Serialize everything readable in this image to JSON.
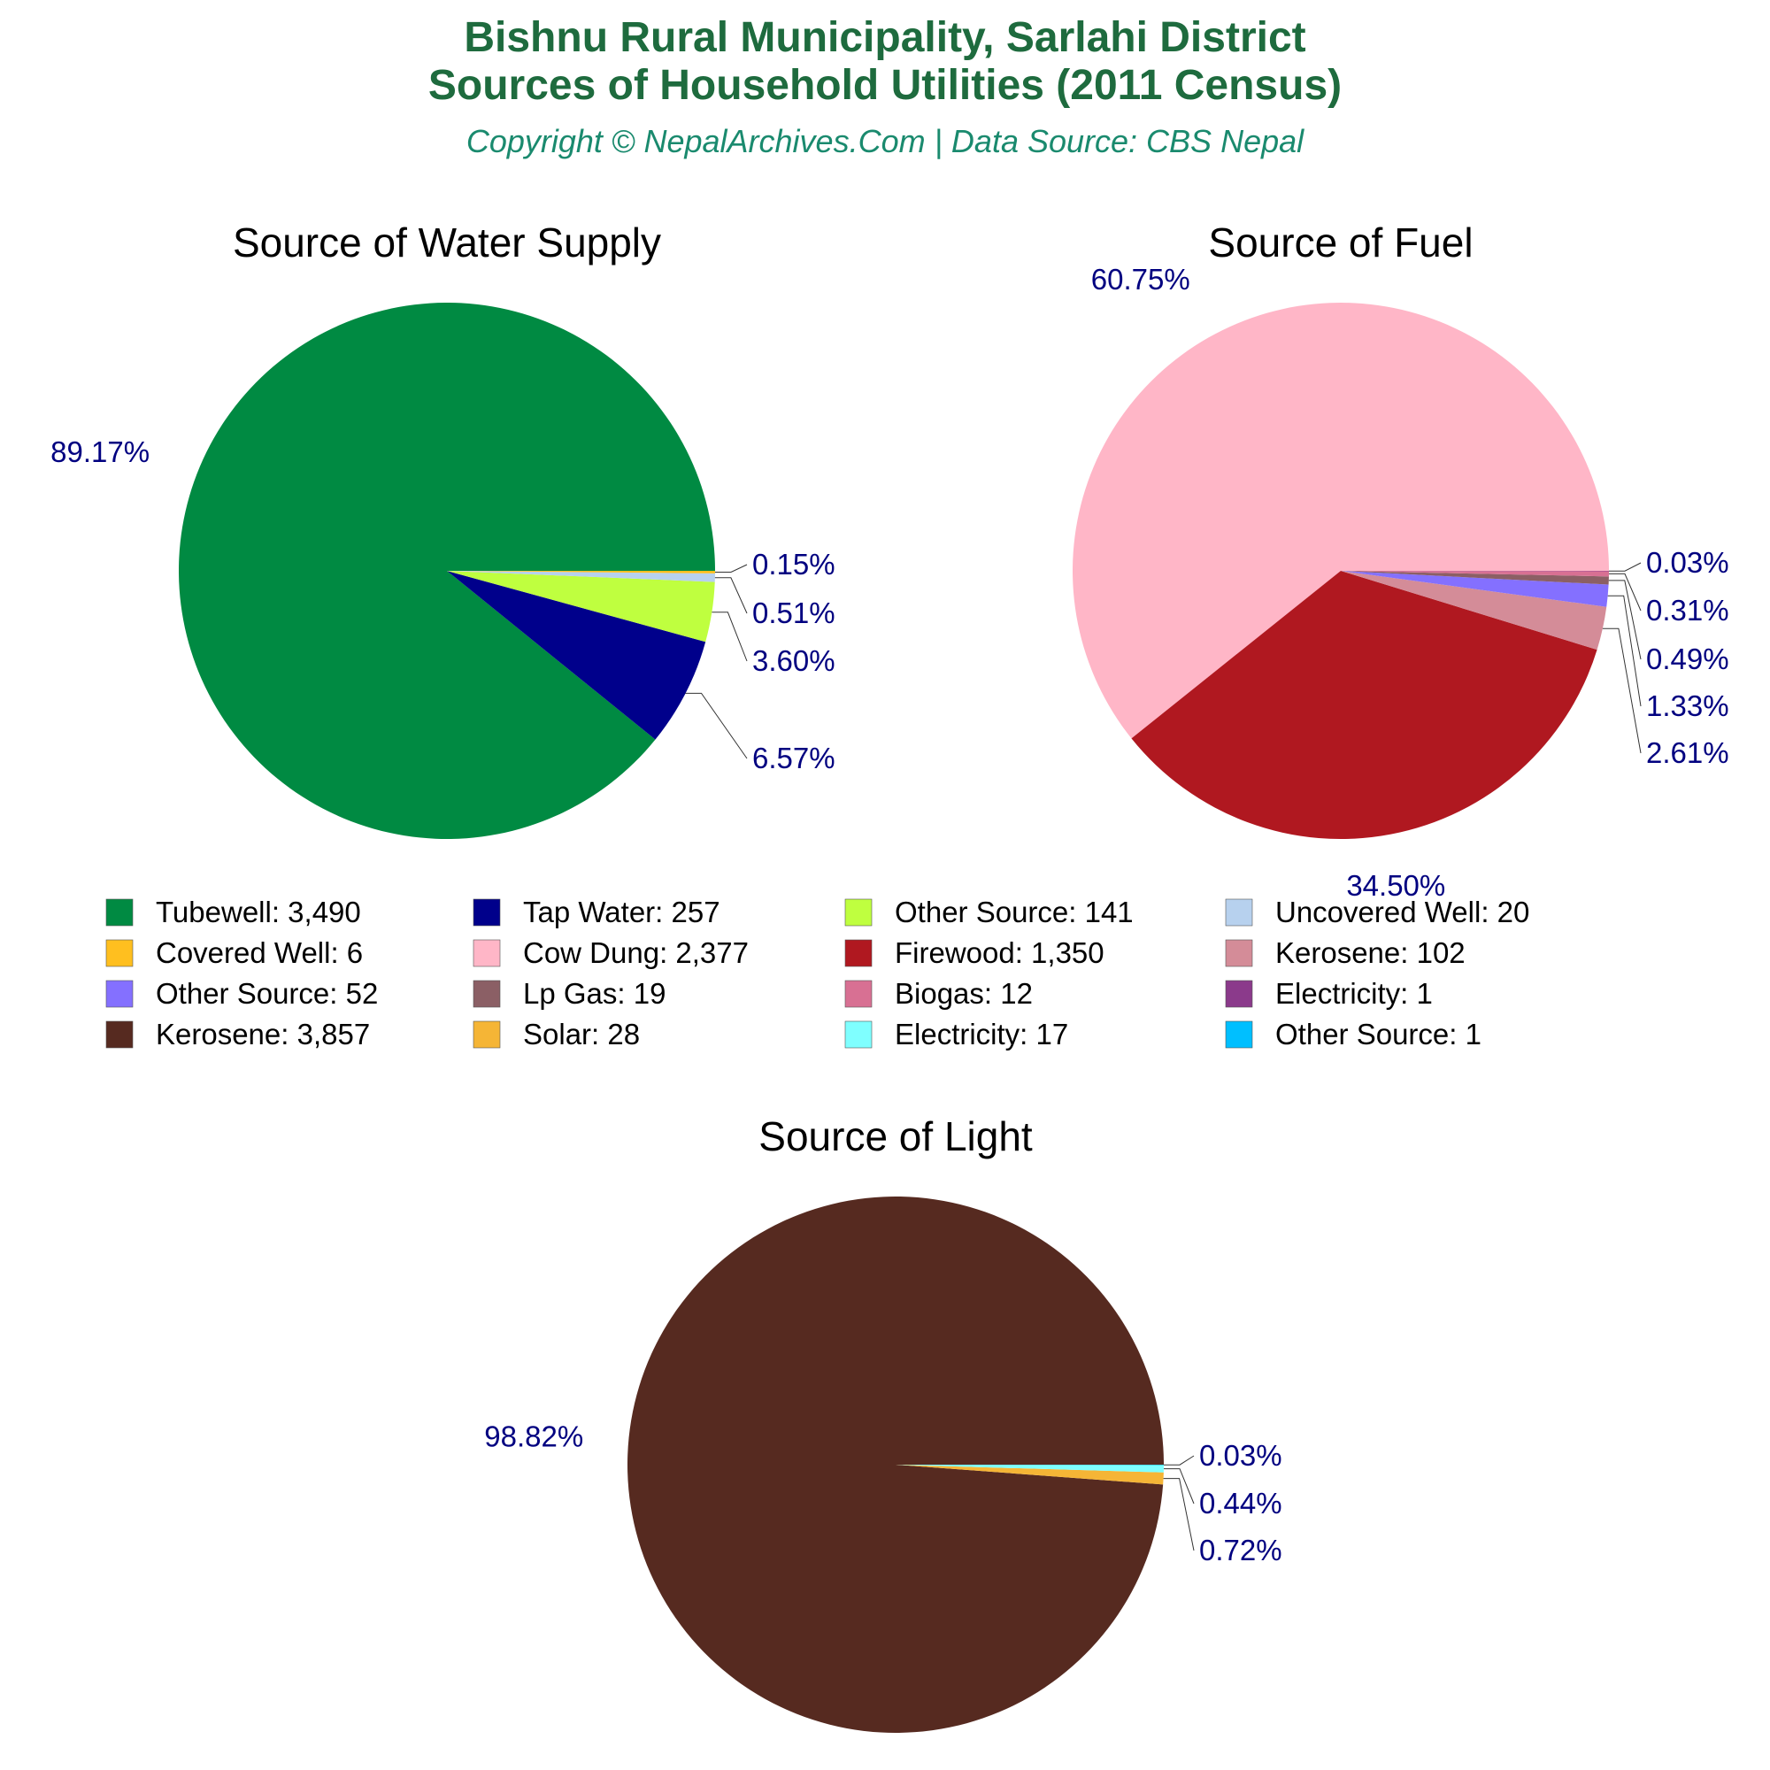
{
  "header": {
    "title_line1": "Bishnu Rural Municipality, Sarlahi District",
    "title_line2": "Sources of Household Utilities (2011 Census)",
    "subtitle": "Copyright © NepalArchives.Com | Data Source: CBS Nepal"
  },
  "colors": {
    "title": "#1e6b3e",
    "subtitle": "#1a8a6e",
    "percent_label": "#000080",
    "leader_line": "#333333"
  },
  "chart_data": [
    {
      "type": "pie",
      "title": "Source of Water Supply",
      "slices": [
        {
          "label": "Tubewell",
          "value": 3490,
          "display": "3,490",
          "pct": "89.17%",
          "color": "#008a42"
        },
        {
          "label": "Tap Water",
          "value": 257,
          "display": "257",
          "pct": "6.57%",
          "color": "#00008b"
        },
        {
          "label": "Other Source",
          "value": 141,
          "display": "141",
          "pct": "3.60%",
          "color": "#bfff3f"
        },
        {
          "label": "Uncovered Well",
          "value": 20,
          "display": "20",
          "pct": "0.51%",
          "color": "#b7d1ee"
        },
        {
          "label": "Covered Well",
          "value": 6,
          "display": "6",
          "pct": "0.15%",
          "color": "#ffbf1f"
        }
      ]
    },
    {
      "type": "pie",
      "title": "Source of Fuel",
      "slices": [
        {
          "label": "Cow Dung",
          "value": 2377,
          "display": "2,377",
          "pct": "60.75%",
          "color": "#ffb6c7"
        },
        {
          "label": "Firewood",
          "value": 1350,
          "display": "1,350",
          "pct": "34.50%",
          "color": "#b01820"
        },
        {
          "label": "Kerosene",
          "value": 102,
          "display": "102",
          "pct": "2.61%",
          "color": "#d48c98"
        },
        {
          "label": "Other Source",
          "value": 52,
          "display": "52",
          "pct": "1.33%",
          "color": "#8470ff"
        },
        {
          "label": "Lp Gas",
          "value": 19,
          "display": "19",
          "pct": "0.49%",
          "color": "#8b5f65"
        },
        {
          "label": "Biogas",
          "value": 12,
          "display": "12",
          "pct": "0.31%",
          "color": "#d87093"
        },
        {
          "label": "Electricity",
          "value": 1,
          "display": "1",
          "pct": "0.03%",
          "color": "#8b3a8b"
        }
      ]
    },
    {
      "type": "pie",
      "title": "Source of Light",
      "slices": [
        {
          "label": "Kerosene",
          "value": 3857,
          "display": "3,857",
          "pct": "98.82%",
          "color": "#562a20"
        },
        {
          "label": "Solar",
          "value": 28,
          "display": "28",
          "pct": "0.72%",
          "color": "#f5b536"
        },
        {
          "label": "Electricity",
          "value": 17,
          "display": "17",
          "pct": "0.44%",
          "color": "#7fffff"
        },
        {
          "label": "Other Source",
          "value": 1,
          "display": "1",
          "pct": "0.03%",
          "color": "#00bfff"
        }
      ]
    }
  ],
  "legend": [
    {
      "text": "Tubewell: 3,490",
      "color": "#008a42"
    },
    {
      "text": "Tap Water: 257",
      "color": "#00008b"
    },
    {
      "text": "Other Source: 141",
      "color": "#bfff3f"
    },
    {
      "text": "Uncovered Well: 20",
      "color": "#b7d1ee"
    },
    {
      "text": "Covered Well: 6",
      "color": "#ffbf1f"
    },
    {
      "text": "Cow Dung: 2,377",
      "color": "#ffb6c7"
    },
    {
      "text": "Firewood: 1,350",
      "color": "#b01820"
    },
    {
      "text": "Kerosene: 102",
      "color": "#d48c98"
    },
    {
      "text": "Other Source: 52",
      "color": "#8470ff"
    },
    {
      "text": "Lp Gas: 19",
      "color": "#8b5f65"
    },
    {
      "text": "Biogas: 12",
      "color": "#d87093"
    },
    {
      "text": "Electricity: 1",
      "color": "#8b3a8b"
    },
    {
      "text": "Kerosene: 3,857",
      "color": "#562a20"
    },
    {
      "text": "Solar: 28",
      "color": "#f5b536"
    },
    {
      "text": "Electricity: 17",
      "color": "#7fffff"
    },
    {
      "text": "Other Source: 1",
      "color": "#00bfff"
    }
  ]
}
